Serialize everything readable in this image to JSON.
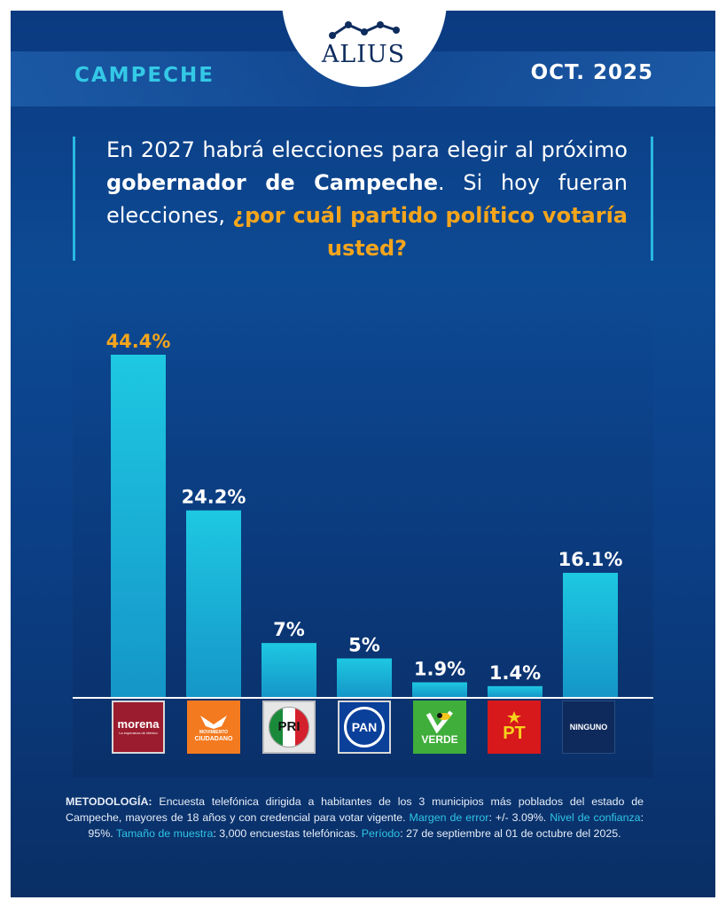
{
  "header": {
    "region": "CAMPECHE",
    "date": "OCT. 2025",
    "brand": "ALIUS"
  },
  "question": {
    "part1": "En 2027 habrá elecciones para elegir al próximo ",
    "bold1": "gobernador de Campeche",
    "part2": ". Si hoy fueran elecciones, ",
    "highlight": "¿por cuál partido político votaría usted?"
  },
  "colors": {
    "bar": "#1ec8e2",
    "highlight_label": "#f4a51c",
    "accent": "#2fc4e6"
  },
  "chart_data": {
    "type": "bar",
    "categories": [
      "morena",
      "MOVIMIENTO CIUDADANO",
      "PRI",
      "PAN",
      "VERDE",
      "PT",
      "NINGUNO"
    ],
    "values": [
      44.4,
      24.2,
      7,
      5,
      1.9,
      1.4,
      16.1
    ],
    "value_labels": [
      "44.4%",
      "24.2%",
      "7%",
      "5%",
      "1.9%",
      "1.4%",
      "16.1%"
    ],
    "title": "",
    "xlabel": "",
    "ylabel": "",
    "ylim": [
      0,
      44.4
    ],
    "grid": false,
    "legend": "none"
  },
  "party_logos": {
    "morena": {
      "name": "morena",
      "sub": "La esperanza de México",
      "icon": "morena-logo-icon"
    },
    "mc": {
      "line1": "MOVIMIENTO",
      "line2": "CIUDADANO",
      "icon": "eagle-icon"
    },
    "pri": {
      "name": "PRI",
      "icon": "pri-logo-icon"
    },
    "pan": {
      "name": "PAN",
      "icon": "pan-logo-icon"
    },
    "verde": {
      "name": "VERDE",
      "icon": "toucan-icon"
    },
    "pt": {
      "name": "PT",
      "icon": "star-icon"
    },
    "ninguno": {
      "name": "NINGUNO"
    }
  },
  "methodology": {
    "label": "METODOLOGÍA:",
    "text1": " Encuesta telefónica dirigida a habitantes de los 3 municipios más poblados del estado de Campeche, mayores de 18 años y con credencial para votar vigente. ",
    "margin_label": "Margen de error",
    "margin_value": ": +/- 3.09%. ",
    "confidence_label": "Nivel de confianza",
    "confidence_value": ": 95%. ",
    "sample_label": "Tamaño de muestra",
    "sample_value": ": 3,000 encuestas telefónicas. ",
    "period_label": "Período",
    "period_value": ": 27 de septiembre al 01 de octubre del 2025."
  }
}
